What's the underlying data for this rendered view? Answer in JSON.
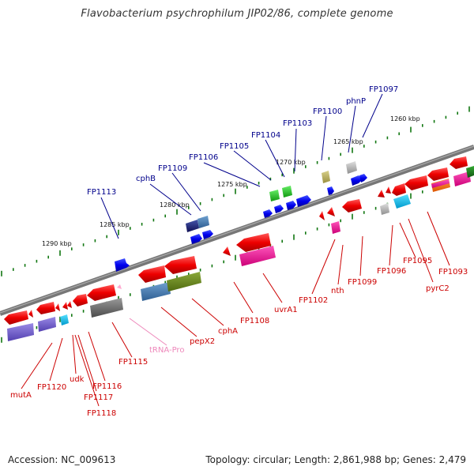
{
  "title": "Flavobacterium psychrophilum JIP02/86, complete genome",
  "footer": {
    "accession": "Accession: NC_009613",
    "summary": "Topology: circular; Length: 2,861,988 bp; Genes: 2,479"
  },
  "kbp_ticks": [
    "1290 kbp",
    "1285 kbp",
    "1280 kbp",
    "1275 kbp",
    "1270 kbp",
    "1265 kbp",
    "1260 kbp"
  ],
  "labels_top": [
    "FP1113",
    "cphB",
    "FP1109",
    "FP1106",
    "FP1105",
    "FP1104",
    "FP1103",
    "FP1100",
    "phnP",
    "FP1097"
  ],
  "labels_bottom": [
    "mutA",
    "FP1120",
    "udk",
    "FP1116",
    "FP1117",
    "FP1118",
    "FP1115",
    "tRNA-Pro",
    "pepX2",
    "cphA",
    "FP1108",
    "uvrA1",
    "FP1102",
    "nth",
    "FP1099",
    "FP1096",
    "FP1095",
    "pyrC2",
    "FP1093"
  ],
  "colors": {
    "backbone": "#777777",
    "forward_label": "#00008b",
    "reverse_label": "#cc0000",
    "trna_label": "#ee88bb",
    "tick": "#117711"
  }
}
